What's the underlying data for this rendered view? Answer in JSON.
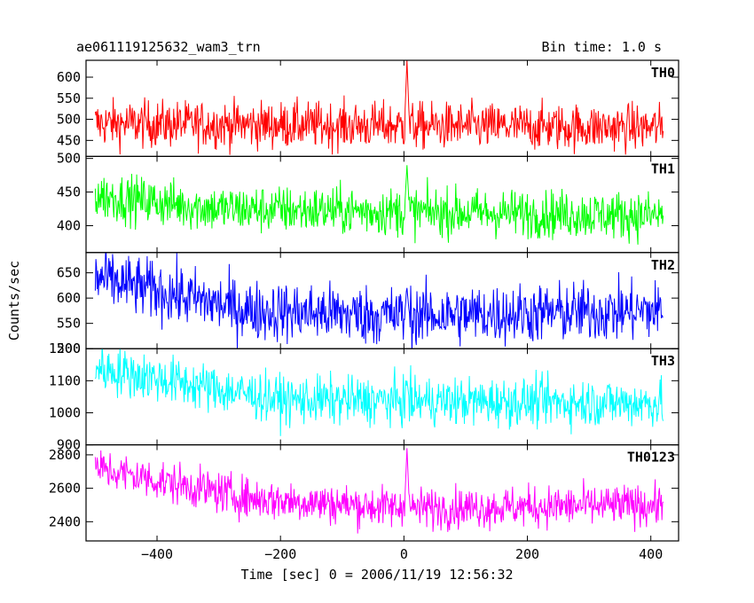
{
  "header": {
    "title": "ae061119125632_wam3_trn",
    "bin_time": "Bin time: 1.0 s"
  },
  "chart_data": {
    "type": "line",
    "ylabel": "Counts/sec",
    "xlabel": "Time [sec] 0 = 2006/11/19 12:56:32",
    "xlim": [
      -515,
      445
    ],
    "x_ticks": [
      -400,
      -200,
      0,
      200,
      400
    ],
    "x_tick_labels": [
      "−400",
      "−200",
      "0",
      "200",
      "400"
    ],
    "x_range_data": [
      -500,
      420
    ],
    "series": [
      {
        "name": "TH0",
        "color": "#ff0000",
        "ylim": [
          412,
          640
        ],
        "y_ticks": [
          450,
          500,
          550,
          600
        ],
        "trend": [
          [
            -500,
            490
          ],
          [
            420,
            480
          ]
        ],
        "noise_sd": 28,
        "spike": {
          "x": 5,
          "peak": 640
        }
      },
      {
        "name": "TH1",
        "color": "#00ff00",
        "ylim": [
          360,
          503
        ],
        "y_ticks": [
          400,
          450,
          500
        ],
        "trend": [
          [
            -500,
            445
          ],
          [
            -300,
            425
          ],
          [
            420,
            415
          ]
        ],
        "noise_sd": 18,
        "spike": {
          "x": 5,
          "peak": 490
        }
      },
      {
        "name": "TH2",
        "color": "#0000ff",
        "ylim": [
          500,
          690
        ],
        "y_ticks": [
          500,
          550,
          600,
          650
        ],
        "trend": [
          [
            -500,
            640
          ],
          [
            -250,
            575
          ],
          [
            0,
            565
          ],
          [
            420,
            575
          ]
        ],
        "noise_sd": 30,
        "spike": {
          "x": 5,
          "peak": 620
        }
      },
      {
        "name": "TH3",
        "color": "#00ffff",
        "ylim": [
          900,
          1200
        ],
        "y_ticks": [
          900,
          1000,
          1100,
          1200
        ],
        "trend": [
          [
            -500,
            1140
          ],
          [
            -200,
            1040
          ],
          [
            420,
            1030
          ]
        ],
        "noise_sd": 38,
        "spike": {
          "x": 5,
          "peak": 1100
        }
      },
      {
        "name": "TH0123",
        "color": "#ff00ff",
        "ylim": [
          2285,
          2860
        ],
        "y_ticks": [
          2400,
          2600,
          2800
        ],
        "trend": [
          [
            -500,
            2720
          ],
          [
            -250,
            2540
          ],
          [
            0,
            2480
          ],
          [
            420,
            2500
          ]
        ],
        "noise_sd": 62,
        "spike": {
          "x": 5,
          "peak": 2840
        }
      }
    ]
  }
}
